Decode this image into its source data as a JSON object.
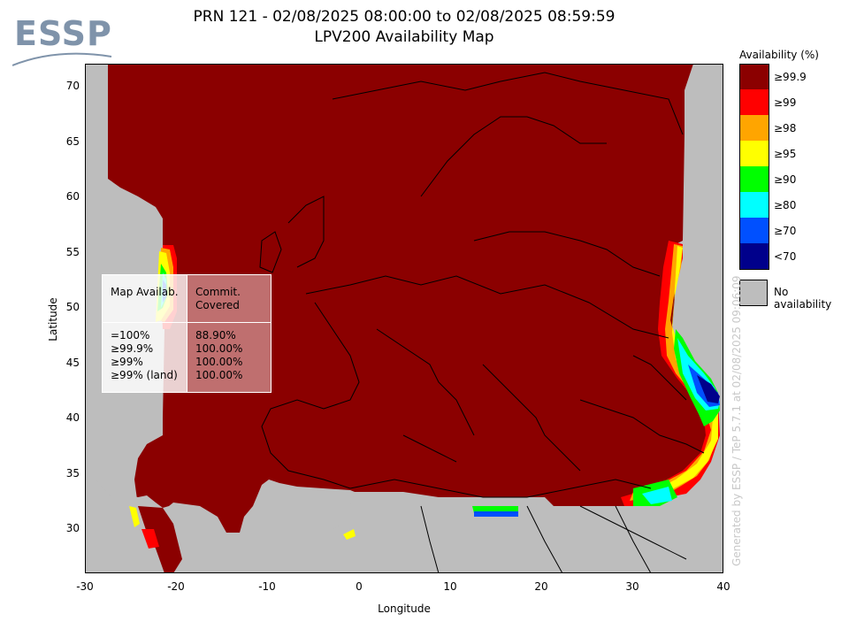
{
  "logo": {
    "text": "ESSP"
  },
  "title": {
    "line1": "PRN 121 - 02/08/2025 08:00:00 to 02/08/2025 08:59:59",
    "line2": "LPV200 Availability Map"
  },
  "axes": {
    "xlabel": "Longitude",
    "ylabel": "Latitude",
    "x_ticks": [
      "-30",
      "-20",
      "-10",
      "0",
      "10",
      "20",
      "30",
      "40"
    ],
    "y_ticks": [
      "70",
      "65",
      "60",
      "55",
      "50",
      "45",
      "40",
      "35",
      "30"
    ],
    "xlim": [
      -30,
      40
    ],
    "ylim": [
      26,
      72
    ]
  },
  "legend": {
    "title": "Availability (%)",
    "items": [
      {
        "label": "≥99.9",
        "color": "#8b0000"
      },
      {
        "label": "≥99",
        "color": "#ff0000"
      },
      {
        "label": "≥98",
        "color": "#ffa500"
      },
      {
        "label": "≥95",
        "color": "#ffff00"
      },
      {
        "label": "≥90",
        "color": "#00ff00"
      },
      {
        "label": "≥80",
        "color": "#00ffff"
      },
      {
        "label": "≥70",
        "color": "#0050ff"
      },
      {
        "label": "<70",
        "color": "#00008b"
      }
    ],
    "no_availability": {
      "label": "No availability",
      "color": "#bdbdbd"
    }
  },
  "stats_table": {
    "col1_header": "Map Availab.",
    "col2_header": "Commit. Covered",
    "rows": [
      {
        "threshold": "=100%",
        "covered": "88.90%"
      },
      {
        "threshold": "≥99.9%",
        "covered": "100.00%"
      },
      {
        "threshold": "≥99%",
        "covered": "100.00%"
      },
      {
        "threshold": "≥99% (land)",
        "covered": "100.00%"
      }
    ]
  },
  "footer": {
    "generated": "Generated by ESSP / TeP 5.7.1 at 02/08/2025 09:06:09"
  },
  "chart_data": {
    "type": "heatmap",
    "title": "PRN 121 - 02/08/2025 08:00:00 to 02/08/2025 08:59:59",
    "subtitle": "LPV200 Availability Map",
    "xlabel": "Longitude",
    "ylabel": "Latitude",
    "xlim": [
      -30,
      40
    ],
    "ylim": [
      26,
      72
    ],
    "colorbar_levels": [
      "≥99.9",
      "≥99",
      "≥98",
      "≥95",
      "≥90",
      "≥80",
      "≥70",
      "<70"
    ],
    "coverage_summary": [
      {
        "threshold": "=100%",
        "covered": 88.9
      },
      {
        "threshold": "≥99.9%",
        "covered": 100.0
      },
      {
        "threshold": "≥99%",
        "covered": 100.0
      },
      {
        "threshold": "≥99% (land)",
        "covered": 100.0
      }
    ]
  }
}
